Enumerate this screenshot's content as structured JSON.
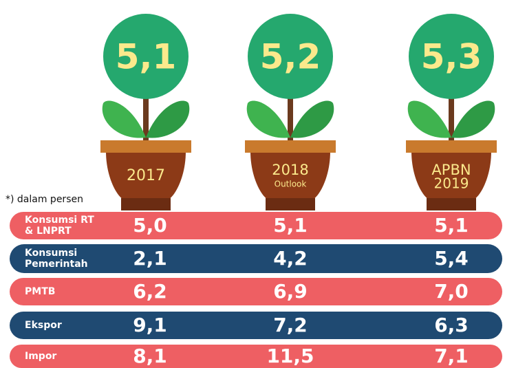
{
  "note": "*) dalam persen",
  "plants": [
    {
      "value": "5,1",
      "label": "2017"
    },
    {
      "value": "5,2",
      "label": "2018",
      "sublabel": "Outlook"
    },
    {
      "value": "5,3",
      "label": "APBN",
      "sublabel": "2019"
    }
  ],
  "rows": [
    {
      "label": [
        "Konsumsi RT",
        "& LNPRT"
      ],
      "values": [
        "5,0",
        "5,1",
        "5,1"
      ]
    },
    {
      "label": [
        "Konsumsi",
        "Pemerintah"
      ],
      "values": [
        "2,1",
        "4,2",
        "5,4"
      ]
    },
    {
      "label": [
        "PMTB"
      ],
      "values": [
        "6,2",
        "6,9",
        "7,0"
      ]
    },
    {
      "label": [
        "Ekspor"
      ],
      "values": [
        "9,1",
        "7,2",
        "6,3"
      ]
    },
    {
      "label": [
        "Impor"
      ],
      "values": [
        "8,1",
        "11,5",
        "7,1"
      ]
    }
  ]
}
